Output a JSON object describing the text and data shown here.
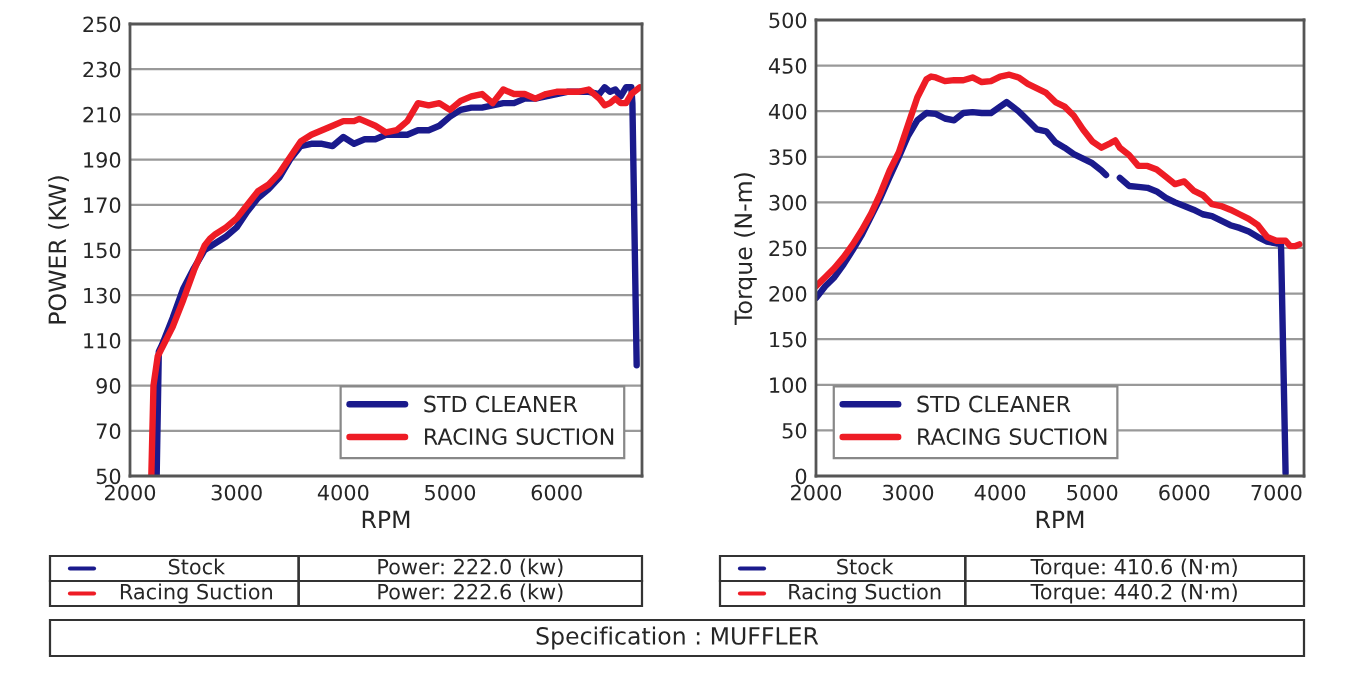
{
  "chart_data": [
    {
      "type": "line",
      "xlabel": "RPM",
      "ylabel": "POWER (KW)",
      "xlim": [
        2000,
        6800
      ],
      "xticks": [
        2000,
        3000,
        4000,
        5000,
        6000
      ],
      "ylim": [
        50,
        250
      ],
      "yticks": [
        50,
        70,
        90,
        110,
        130,
        150,
        170,
        190,
        210,
        230,
        250
      ],
      "grid": "y",
      "legend": "bottom right",
      "series": [
        {
          "name": "STD CLEANER",
          "color": "#1a1a8c",
          "x": [
            2250,
            2270,
            2300,
            2400,
            2500,
            2600,
            2700,
            2800,
            2900,
            3000,
            3100,
            3200,
            3300,
            3400,
            3500,
            3600,
            3700,
            3800,
            3900,
            4000,
            4100,
            4200,
            4300,
            4400,
            4500,
            4600,
            4700,
            4800,
            4900,
            5000,
            5100,
            5200,
            5300,
            5400,
            5500,
            5600,
            5700,
            5800,
            5900,
            6000,
            6100,
            6200,
            6300,
            6400,
            6450,
            6500,
            6550,
            6600,
            6650,
            6700,
            6710,
            6750
          ],
          "values": [
            50,
            105,
            108,
            120,
            133,
            142,
            150,
            153,
            156,
            160,
            167,
            173,
            177,
            182,
            190,
            196,
            197,
            197,
            196,
            200,
            197,
            199,
            199,
            201,
            201,
            201,
            203,
            203,
            205,
            209,
            212,
            213,
            213,
            214,
            215,
            215,
            217,
            217,
            218,
            219,
            220,
            220,
            220,
            219,
            222,
            220,
            221,
            218,
            222,
            222,
            215,
            99
          ]
        },
        {
          "name": "RACING SUCTION",
          "color": "#ee1c25",
          "x": [
            2200,
            2220,
            2260,
            2400,
            2500,
            2600,
            2700,
            2750,
            2800,
            2900,
            3000,
            3100,
            3200,
            3300,
            3400,
            3500,
            3600,
            3700,
            3800,
            3900,
            4000,
            4100,
            4150,
            4200,
            4300,
            4400,
            4500,
            4600,
            4700,
            4800,
            4900,
            5000,
            5100,
            5200,
            5300,
            5400,
            5500,
            5600,
            5700,
            5800,
            5900,
            6000,
            6100,
            6200,
            6300,
            6400,
            6450,
            6500,
            6550,
            6600,
            6650,
            6700,
            6780
          ],
          "values": [
            50,
            90,
            103,
            116,
            128,
            141,
            152,
            155,
            157,
            160,
            164,
            170,
            176,
            179,
            184,
            191,
            198,
            201,
            203,
            205,
            207,
            207,
            208,
            207,
            205,
            202,
            203,
            207,
            215,
            214,
            215,
            212,
            216,
            218,
            219,
            215,
            221,
            219,
            219,
            217,
            219,
            220,
            220,
            220,
            221,
            217,
            214,
            215,
            217,
            215,
            215,
            219,
            222
          ]
        }
      ],
      "annotations": [
        "Stock",
        "Power: 222.0 (kw)",
        "Racing Suction",
        "Power: 222.6 (kw)",
        "Specification : MUFFLER"
      ]
    },
    {
      "type": "line",
      "xlabel": "RPM",
      "ylabel": "Torque (N-m)",
      "xlim": [
        2000,
        7300
      ],
      "xticks": [
        2000,
        3000,
        4000,
        5000,
        6000,
        7000
      ],
      "ylim": [
        0,
        500
      ],
      "yticks": [
        0,
        50,
        100,
        150,
        200,
        250,
        300,
        350,
        400,
        450,
        500
      ],
      "grid": "y",
      "legend": "bottom left",
      "series": [
        {
          "name": "STD CLEANER",
          "color": "#1a1a8c",
          "x": [
            2000,
            2100,
            2200,
            2300,
            2400,
            2500,
            2600,
            2700,
            2800,
            2900,
            3000,
            3100,
            3200,
            3300,
            3400,
            3500,
            3600,
            3700,
            3800,
            3900,
            4000,
            4070,
            4200,
            4300,
            4400,
            4500,
            4600,
            4700,
            4800,
            4900,
            5000,
            5100,
            5150,
            5200,
            5300,
            5400,
            5500,
            5600,
            5700,
            5800,
            5900,
            6000,
            6100,
            6200,
            6300,
            6400,
            6500,
            6600,
            6700,
            6800,
            6900,
            7000,
            7050,
            7100
          ],
          "values": [
            195,
            208,
            218,
            232,
            248,
            265,
            285,
            305,
            328,
            350,
            373,
            390,
            398,
            397,
            392,
            390,
            398,
            399,
            398,
            398,
            405,
            410,
            400,
            390,
            380,
            378,
            366,
            360,
            353,
            348,
            343,
            335,
            330,
            null,
            327,
            318,
            317,
            316,
            312,
            305,
            300,
            296,
            292,
            287,
            285,
            280,
            275,
            272,
            268,
            262,
            257,
            255,
            255,
            3
          ]
        },
        {
          "name": "RACING SUCTION",
          "color": "#ee1c25",
          "x": [
            2000,
            2100,
            2200,
            2300,
            2400,
            2500,
            2600,
            2700,
            2800,
            2900,
            3000,
            3100,
            3200,
            3250,
            3300,
            3400,
            3500,
            3600,
            3700,
            3800,
            3900,
            4000,
            4100,
            4200,
            4300,
            4400,
            4500,
            4600,
            4700,
            4800,
            4900,
            5000,
            5100,
            5200,
            5250,
            5300,
            5400,
            5500,
            5600,
            5700,
            5800,
            5900,
            6000,
            6100,
            6200,
            6300,
            6400,
            6500,
            6600,
            6700,
            6800,
            6900,
            7000,
            7100,
            7150,
            7200,
            7250
          ],
          "values": [
            208,
            218,
            228,
            240,
            254,
            270,
            288,
            310,
            335,
            355,
            385,
            415,
            435,
            438,
            437,
            433,
            434,
            434,
            437,
            432,
            433,
            438,
            440,
            437,
            430,
            425,
            420,
            410,
            405,
            395,
            380,
            367,
            360,
            365,
            368,
            360,
            352,
            340,
            340,
            336,
            328,
            320,
            323,
            313,
            308,
            298,
            296,
            292,
            287,
            282,
            275,
            262,
            258,
            258,
            252,
            252,
            254
          ]
        }
      ],
      "annotations": [
        "Stock",
        "Torque: 410.6 (N·m)",
        "Racing Suction",
        "Torque: 440.2 (N·m)"
      ]
    }
  ]
}
